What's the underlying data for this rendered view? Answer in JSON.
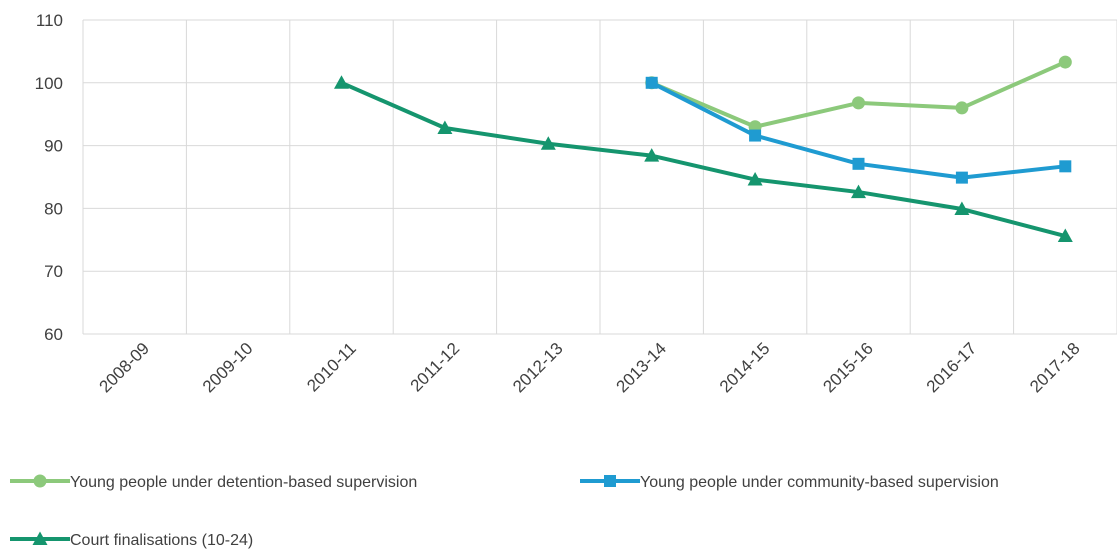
{
  "chart_data": {
    "type": "line",
    "categories": [
      "2008-09",
      "2009-10",
      "2010-11",
      "2011-12",
      "2012-13",
      "2013-14",
      "2014-15",
      "2015-16",
      "2016-17",
      "2017-18"
    ],
    "ylim": [
      60,
      110
    ],
    "yticks": [
      60,
      70,
      80,
      90,
      100,
      110
    ],
    "grid": true,
    "legend_position": "bottom",
    "series": [
      {
        "name": "Young people under detention-based supervision",
        "color": "#8cc97b",
        "marker": "circle",
        "values": [
          null,
          null,
          null,
          null,
          null,
          100,
          93,
          96.8,
          96,
          103.3
        ]
      },
      {
        "name": "Young people under community-based supervision",
        "color": "#1f9bd1",
        "marker": "square",
        "values": [
          null,
          null,
          null,
          null,
          null,
          100,
          91.6,
          87.1,
          84.9,
          86.7
        ]
      },
      {
        "name": "Court finalisations (10-24)",
        "color": "#15956e",
        "marker": "triangle",
        "values": [
          null,
          null,
          100,
          92.8,
          90.3,
          88.4,
          84.6,
          82.6,
          79.9,
          75.6
        ]
      }
    ]
  }
}
